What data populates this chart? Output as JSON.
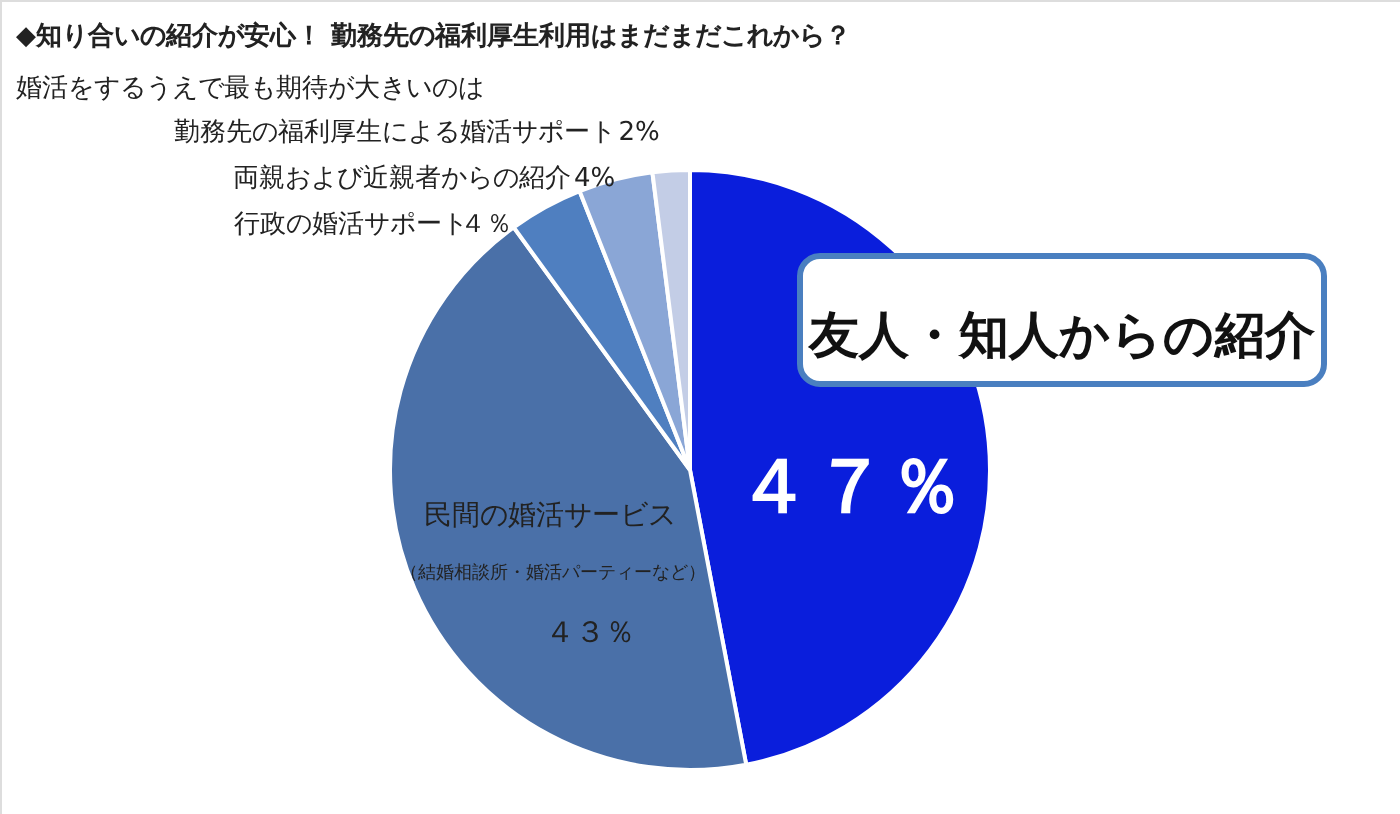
{
  "chart_data": {
    "type": "pie",
    "title": "◆知り合いの紹介が安心！ 勤務先の福利厚生利用はまだまだこれから？",
    "subtitle": "婚活をするうえで最も期待が大きいのは",
    "categories": [
      "友人・知人からの紹介",
      "民間の婚活サービス",
      "行政の婚活サポート",
      "両親および近親者からの紹介",
      "勤務先の福利厚生による婚活サポート"
    ],
    "values": [
      47,
      43,
      4,
      4,
      2
    ],
    "colors": [
      "#0a1edc",
      "#4a70a8",
      "#4f7fc0",
      "#8aa6d6",
      "#c3cde6"
    ],
    "value_labels": [
      "４７％",
      "４３％",
      "４％",
      "4%",
      "2%"
    ],
    "annotations": [
      "（結婚相談所・婚活パーティーなど）"
    ]
  }
}
